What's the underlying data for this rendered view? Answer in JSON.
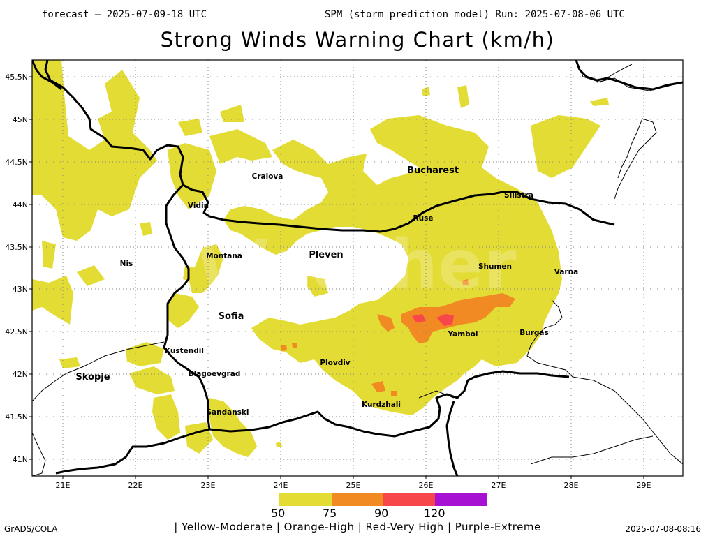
{
  "header": {
    "forecast": "forecast — 2025-07-09-18 UTC",
    "model_run": "SPM (storm prediction model) Run: 2025-07-08-06 UTC"
  },
  "title": "Strong Winds Warning Chart (km/h)",
  "watermark": "Weather",
  "map": {
    "lat_labels": [
      "45.5N",
      "45N",
      "44.5N",
      "44N",
      "43.5N",
      "43N",
      "42.5N",
      "42N",
      "41.5N",
      "41N"
    ],
    "lon_labels": [
      "21E",
      "22E",
      "23E",
      "24E",
      "25E",
      "26E",
      "27E",
      "28E",
      "29E"
    ],
    "cities": [
      {
        "name": "Bucharest",
        "large": true
      },
      {
        "name": "Craiova",
        "large": false
      },
      {
        "name": "Silistra",
        "large": false
      },
      {
        "name": "Vidin",
        "large": false
      },
      {
        "name": "Ruse",
        "large": false
      },
      {
        "name": "Montana",
        "large": false
      },
      {
        "name": "Pleven",
        "large": true
      },
      {
        "name": "Nis",
        "large": false
      },
      {
        "name": "Shumen",
        "large": false
      },
      {
        "name": "Varna",
        "large": false
      },
      {
        "name": "Sofia",
        "large": true
      },
      {
        "name": "Yambol",
        "large": false
      },
      {
        "name": "Burgas",
        "large": false
      },
      {
        "name": "Kustendil",
        "large": false
      },
      {
        "name": "Plovdiv",
        "large": false
      },
      {
        "name": "Skopje",
        "large": true
      },
      {
        "name": "Blagoevgrad",
        "large": false
      },
      {
        "name": "Kurdzhali",
        "large": false
      },
      {
        "name": "Sandanski",
        "large": false
      }
    ]
  },
  "legend": {
    "bins": [
      {
        "color": "#e3dc35",
        "label": "Yellow-Moderate"
      },
      {
        "color": "#f28a24",
        "label": "Orange-High"
      },
      {
        "color": "#f7474a",
        "label": "Red-Very High"
      },
      {
        "color": "#a611d2",
        "label": "Purple-Extreme"
      }
    ],
    "values": [
      "50",
      "75",
      "90",
      "120"
    ],
    "caption": "| Yellow-Moderate | Orange-High | Red-Very High | Purple-Extreme"
  },
  "footer": {
    "credit": "GrADS/COLA",
    "timestamp": "2025-07-08-08:16"
  }
}
